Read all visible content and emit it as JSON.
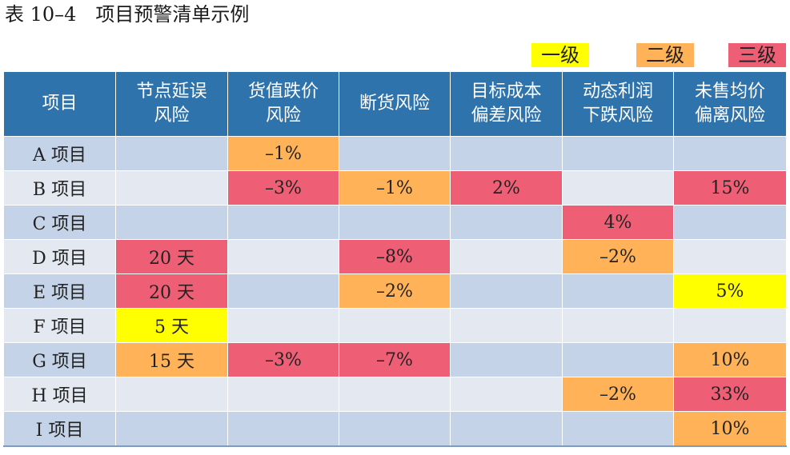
{
  "caption": "表 10–4　项目预警清单示例",
  "legend": {
    "level1": "一级",
    "level2": "二级",
    "level3": "三级"
  },
  "colors": {
    "level1": "#ffff00",
    "level2": "#ffb257",
    "level3": "#ee5f76",
    "header": "#2f73ad",
    "row_dark": "#c5d3e8",
    "row_light": "#e3e8f1"
  },
  "table": {
    "headers": [
      [
        "项目"
      ],
      [
        "节点延误",
        "风险"
      ],
      [
        "货值跌价",
        "风险"
      ],
      [
        "断货风险"
      ],
      [
        "目标成本",
        "偏差风险"
      ],
      [
        "动态利润",
        "下跌风险"
      ],
      [
        "未售均价",
        "偏离风险"
      ]
    ],
    "rows": [
      {
        "name": "A 项目",
        "cells": [
          {
            "v": "",
            "l": 0
          },
          {
            "v": "–1%",
            "l": 2
          },
          {
            "v": "",
            "l": 0
          },
          {
            "v": "",
            "l": 0
          },
          {
            "v": "",
            "l": 0
          },
          {
            "v": "",
            "l": 0
          }
        ]
      },
      {
        "name": "B 项目",
        "cells": [
          {
            "v": "",
            "l": 0
          },
          {
            "v": "–3%",
            "l": 3
          },
          {
            "v": "–1%",
            "l": 2
          },
          {
            "v": "2%",
            "l": 3
          },
          {
            "v": "",
            "l": 0
          },
          {
            "v": "15%",
            "l": 3
          }
        ]
      },
      {
        "name": "C 项目",
        "cells": [
          {
            "v": "",
            "l": 0
          },
          {
            "v": "",
            "l": 0
          },
          {
            "v": "",
            "l": 0
          },
          {
            "v": "",
            "l": 0
          },
          {
            "v": "4%",
            "l": 3
          },
          {
            "v": "",
            "l": 0
          }
        ]
      },
      {
        "name": "D 项目",
        "cells": [
          {
            "v": "20 天",
            "l": 3
          },
          {
            "v": "",
            "l": 0
          },
          {
            "v": "–8%",
            "l": 3
          },
          {
            "v": "",
            "l": 0
          },
          {
            "v": "–2%",
            "l": 2
          },
          {
            "v": "",
            "l": 0
          }
        ]
      },
      {
        "name": "E 项目",
        "cells": [
          {
            "v": "20 天",
            "l": 3
          },
          {
            "v": "",
            "l": 0
          },
          {
            "v": "–2%",
            "l": 2
          },
          {
            "v": "",
            "l": 0
          },
          {
            "v": "",
            "l": 0
          },
          {
            "v": "5%",
            "l": 1
          }
        ]
      },
      {
        "name": "F 项目",
        "cells": [
          {
            "v": "5 天",
            "l": 1
          },
          {
            "v": "",
            "l": 0
          },
          {
            "v": "",
            "l": 0
          },
          {
            "v": "",
            "l": 0
          },
          {
            "v": "",
            "l": 0
          },
          {
            "v": "",
            "l": 0
          }
        ]
      },
      {
        "name": "G 项目",
        "cells": [
          {
            "v": "15 天",
            "l": 2
          },
          {
            "v": "–3%",
            "l": 3
          },
          {
            "v": "–7%",
            "l": 3
          },
          {
            "v": "",
            "l": 0
          },
          {
            "v": "",
            "l": 0
          },
          {
            "v": "10%",
            "l": 2
          }
        ]
      },
      {
        "name": "H 项目",
        "cells": [
          {
            "v": "",
            "l": 0
          },
          {
            "v": "",
            "l": 0
          },
          {
            "v": "",
            "l": 0
          },
          {
            "v": "",
            "l": 0
          },
          {
            "v": "–2%",
            "l": 2
          },
          {
            "v": "33%",
            "l": 3
          }
        ]
      },
      {
        "name": "I 项目",
        "cells": [
          {
            "v": "",
            "l": 0
          },
          {
            "v": "",
            "l": 0
          },
          {
            "v": "",
            "l": 0
          },
          {
            "v": "",
            "l": 0
          },
          {
            "v": "",
            "l": 0
          },
          {
            "v": "10%",
            "l": 2
          }
        ]
      }
    ]
  }
}
